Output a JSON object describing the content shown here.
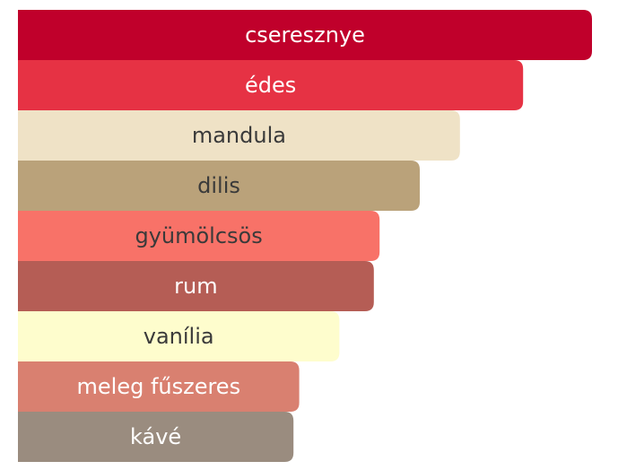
{
  "chart_data": {
    "type": "bar",
    "orientation": "horizontal",
    "categories": [
      "cseresznye",
      "édes",
      "mandula",
      "dilis",
      "gyümölcsös",
      "rum",
      "vanília",
      "meleg fűszeres",
      "kávé"
    ],
    "values": [
      100,
      88,
      77,
      70,
      63,
      62,
      56,
      49,
      48
    ],
    "colors": [
      "#c0002b",
      "#e63244",
      "#efe2c6",
      "#baa27a",
      "#f87268",
      "#b55d55",
      "#fefdcd",
      "#d98070",
      "#9a8c7f"
    ],
    "xlim": [
      0,
      100
    ]
  }
}
